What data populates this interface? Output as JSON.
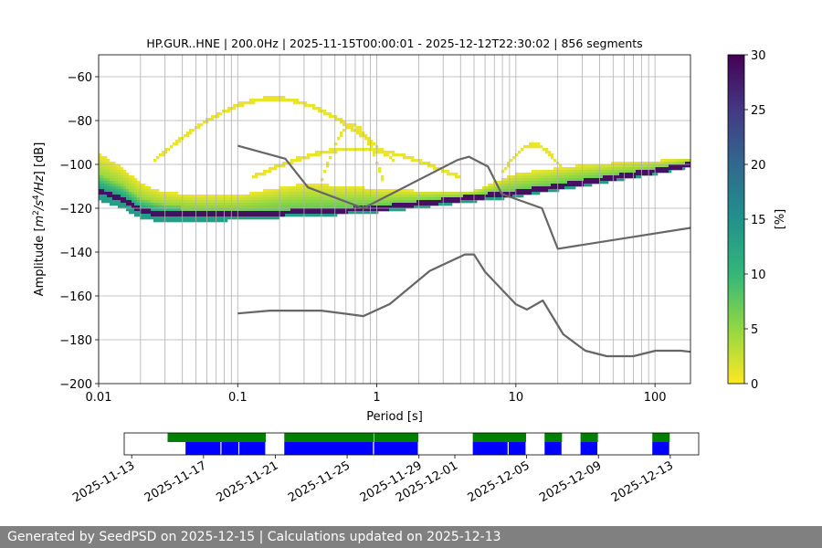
{
  "title": "HP.GUR..HNE | 200.0Hz | 2025-11-15T00:00:01 - 2025-12-12T22:30:02 | 856 segments",
  "footer": {
    "generated_label": "Generated by SeedPSD on 2025-12-15 | Calculations updated on 2025-12-13"
  },
  "chart_data": [
    {
      "type": "heatmap",
      "title": "HP.GUR..HNE | 200.0Hz | 2025-11-15T00:00:01 - 2025-12-12T22:30:02 | 856 segments",
      "xlabel": "Period [s]",
      "ylabel": "Amplitude [m²/s⁴/Hz] [dB]",
      "x_scale": "log",
      "xlim": [
        0.01,
        180
      ],
      "ylim": [
        -200,
        -50
      ],
      "xticks": [
        "0.01",
        "0.1",
        "1",
        "10",
        "100"
      ],
      "yticks": [
        "−60",
        "−80",
        "−100",
        "−120",
        "−140",
        "−160",
        "−180",
        "−200"
      ],
      "grid": true,
      "colorbar": {
        "label": "[%]",
        "range": [
          0,
          30
        ],
        "ticks": [
          "0",
          "5",
          "10",
          "15",
          "20",
          "25",
          "30"
        ],
        "colormap": "viridis_r"
      },
      "mode_curve": {
        "x": [
          0.01,
          0.015,
          0.02,
          0.03,
          0.05,
          0.1,
          0.2,
          0.5,
          1,
          2,
          5,
          10,
          20,
          50,
          100,
          180
        ],
        "y": [
          -112,
          -116,
          -121,
          -123,
          -123,
          -123,
          -122,
          -121,
          -120,
          -118,
          -115,
          -113,
          -110,
          -106,
          -103,
          -100
        ]
      },
      "high_noise_model": {
        "x": [
          0.1,
          0.22,
          0.32,
          0.8,
          3.8,
          4.6,
          6.3,
          7.9,
          15.4,
          20,
          354.8
        ],
        "y": [
          -91.5,
          -97.4,
          -110.5,
          -120,
          -98,
          -96.5,
          -101,
          -113.5,
          -120,
          -138.5,
          -126
        ]
      },
      "low_noise_model": {
        "x": [
          0.1,
          0.17,
          0.4,
          0.8,
          1.24,
          2.4,
          4.3,
          5,
          6,
          10,
          12,
          15.6,
          21.9,
          31.6,
          45,
          70,
          101,
          154,
          180
        ],
        "y": [
          -168,
          -166.7,
          -166.7,
          -169.2,
          -163.7,
          -148.6,
          -141.1,
          -141.1,
          -149,
          -163.8,
          -166.2,
          -162.1,
          -177.5,
          -185,
          -187.5,
          -187.5,
          -185,
          -185,
          -185.5
        ]
      }
    },
    {
      "type": "timeline",
      "xticks": [
        "2025-11-13",
        "2025-11-17",
        "2025-11-21",
        "2025-11-25",
        "2025-11-29",
        "2025-12-01",
        "2025-12-05",
        "2025-12-09",
        "2025-12-13"
      ],
      "xlim": [
        "2025-11-12T14:00",
        "2025-12-14T14:00"
      ],
      "colors": {
        "coverage": "#008000",
        "psd": "#0000ff"
      },
      "coverage_segments": [
        [
          "2025-11-15T00:00",
          "2025-11-20T12:00"
        ],
        [
          "2025-11-21T12:00",
          "2025-11-26T12:00"
        ],
        [
          "2025-11-26T12:00",
          "2025-11-29T00:00"
        ],
        [
          "2025-12-02T00:00",
          "2025-12-05T00:00"
        ],
        [
          "2025-12-06T00:00",
          "2025-12-07T00:00"
        ],
        [
          "2025-12-08T00:00",
          "2025-12-09T00:00"
        ],
        [
          "2025-12-12T00:00",
          "2025-12-13T00:00"
        ]
      ],
      "psd_segments": [
        [
          "2025-11-16T00:00",
          "2025-11-18T00:00"
        ],
        [
          "2025-11-18T00:00",
          "2025-11-19T00:00"
        ],
        [
          "2025-11-19T00:00",
          "2025-11-20T12:00"
        ],
        [
          "2025-11-21T12:00",
          "2025-11-26T12:00"
        ],
        [
          "2025-11-26T12:00",
          "2025-11-29T00:00"
        ],
        [
          "2025-12-02T00:00",
          "2025-12-04T00:00"
        ],
        [
          "2025-12-04T00:00",
          "2025-12-05T00:00"
        ],
        [
          "2025-12-06T00:00",
          "2025-12-07T00:00"
        ],
        [
          "2025-12-08T00:00",
          "2025-12-09T00:00"
        ],
        [
          "2025-12-12T00:00",
          "2025-12-13T00:00"
        ]
      ]
    }
  ]
}
